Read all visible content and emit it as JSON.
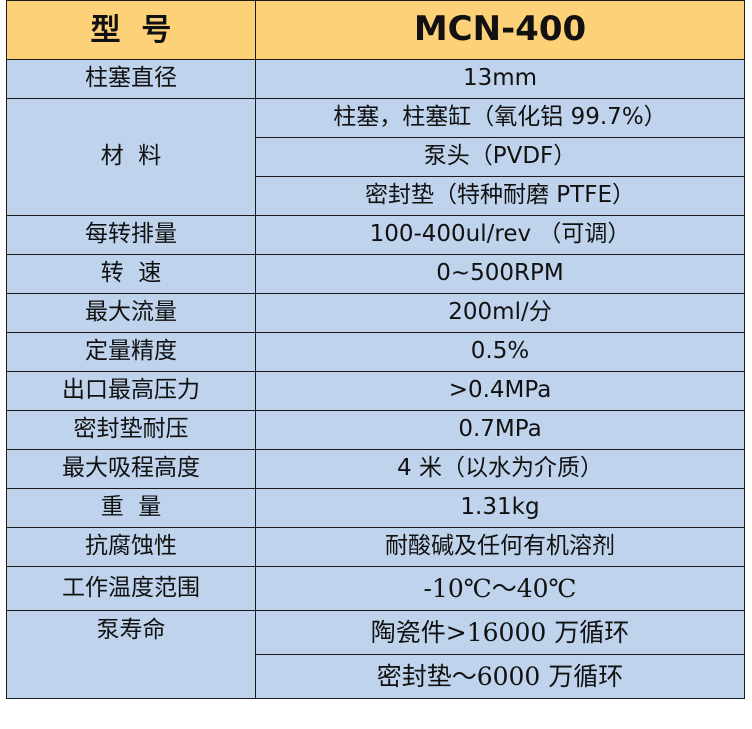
{
  "header": {
    "label": "型  号",
    "value": "MCN-400"
  },
  "rows": [
    {
      "label": "柱塞直径",
      "values": [
        "13mm"
      ]
    },
    {
      "label": "材  料",
      "values": [
        "柱塞，柱塞缸（氧化铝 99.7%）",
        "泵头（PVDF）",
        "密封垫（特种耐磨 PTFE）"
      ]
    },
    {
      "label": "每转排量",
      "values": [
        "100-400ul/rev （可调）"
      ]
    },
    {
      "label": "转  速",
      "values": [
        "0~500RPM"
      ]
    },
    {
      "label": "最大流量",
      "values": [
        "200ml/分"
      ]
    },
    {
      "label": "定量精度",
      "values": [
        "0.5%"
      ]
    },
    {
      "label": "出口最高压力",
      "values": [
        ">0.4MPa"
      ]
    },
    {
      "label": "密封垫耐压",
      "values": [
        "0.7MPa"
      ]
    },
    {
      "label": "最大吸程高度",
      "values": [
        "4 米（以水为介质）"
      ]
    },
    {
      "label": "重  量",
      "values": [
        "1.31kg"
      ]
    },
    {
      "label": "抗腐蚀性",
      "values": [
        "耐酸碱及任何有机溶剂"
      ]
    },
    {
      "label": "工作温度范围",
      "values": [
        "-10℃～40℃"
      ]
    },
    {
      "label": "泵寿命",
      "values": [
        "陶瓷件>16000 万循环",
        "密封垫～6000 万循环"
      ]
    }
  ]
}
